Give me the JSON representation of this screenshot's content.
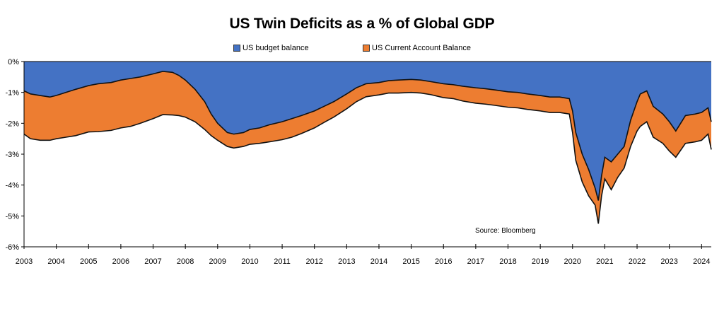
{
  "chart_data": {
    "type": "area",
    "title": "US Twin Deficits as a % of Global GDP",
    "xlabel": "",
    "ylabel": "",
    "xlim": [
      2003,
      2024.3
    ],
    "ylim": [
      -6,
      0
    ],
    "grid": false,
    "legend_position": "top-center",
    "x_tick_labels": [
      "2003",
      "2004",
      "2005",
      "2006",
      "2007",
      "2008",
      "2009",
      "2010",
      "2011",
      "2012",
      "2013",
      "2014",
      "2015",
      "2016",
      "2017",
      "2018",
      "2019",
      "2020",
      "2021",
      "2022",
      "2023",
      "2024"
    ],
    "y_tick_labels": [
      "0%",
      "-1%",
      "-2%",
      "-3%",
      "-4%",
      "-5%",
      "-6%"
    ],
    "y_tick_values": [
      0,
      -1,
      -2,
      -3,
      -4,
      -5,
      -6
    ],
    "x": [
      2003.0,
      2003.2,
      2003.5,
      2003.8,
      2004.0,
      2004.3,
      2004.6,
      2005.0,
      2005.3,
      2005.7,
      2006.0,
      2006.3,
      2006.6,
      2007.0,
      2007.3,
      2007.6,
      2007.8,
      2008.0,
      2008.3,
      2008.6,
      2008.8,
      2009.0,
      2009.3,
      2009.5,
      2009.8,
      2010.0,
      2010.3,
      2010.6,
      2011.0,
      2011.3,
      2011.6,
      2012.0,
      2012.3,
      2012.6,
      2013.0,
      2013.3,
      2013.6,
      2014.0,
      2014.3,
      2014.6,
      2015.0,
      2015.3,
      2015.6,
      2016.0,
      2016.3,
      2016.6,
      2017.0,
      2017.3,
      2017.6,
      2018.0,
      2018.3,
      2018.6,
      2019.0,
      2019.3,
      2019.6,
      2019.9,
      2020.0,
      2020.1,
      2020.3,
      2020.5,
      2020.7,
      2020.8,
      2020.9,
      2021.0,
      2021.2,
      2021.4,
      2021.6,
      2021.8,
      2022.0,
      2022.1,
      2022.3,
      2022.5,
      2022.8,
      2023.0,
      2023.2,
      2023.5,
      2023.8,
      2024.0,
      2024.2,
      2024.3
    ],
    "series": [
      {
        "name": "US budget balance",
        "color": "#4472C4",
        "values": [
          -0.95,
          -1.05,
          -1.1,
          -1.15,
          -1.1,
          -1.0,
          -0.9,
          -0.78,
          -0.72,
          -0.68,
          -0.6,
          -0.55,
          -0.5,
          -0.4,
          -0.32,
          -0.35,
          -0.45,
          -0.6,
          -0.9,
          -1.3,
          -1.7,
          -2.0,
          -2.3,
          -2.35,
          -2.3,
          -2.2,
          -2.15,
          -2.05,
          -1.95,
          -1.85,
          -1.75,
          -1.6,
          -1.45,
          -1.3,
          -1.05,
          -0.85,
          -0.72,
          -0.68,
          -0.62,
          -0.6,
          -0.58,
          -0.6,
          -0.65,
          -0.72,
          -0.75,
          -0.8,
          -0.85,
          -0.88,
          -0.92,
          -0.98,
          -1.0,
          -1.05,
          -1.1,
          -1.15,
          -1.15,
          -1.2,
          -1.6,
          -2.3,
          -3.0,
          -3.5,
          -4.1,
          -4.5,
          -3.7,
          -3.1,
          -3.25,
          -3.0,
          -2.75,
          -1.9,
          -1.3,
          -1.05,
          -0.95,
          -1.45,
          -1.7,
          -1.95,
          -2.25,
          -1.75,
          -1.7,
          -1.65,
          -1.5,
          -1.95
        ]
      },
      {
        "name": "US Current Account Balance",
        "color": "#ED7D31",
        "values": [
          -1.4,
          -1.45,
          -1.45,
          -1.4,
          -1.4,
          -1.45,
          -1.5,
          -1.5,
          -1.55,
          -1.55,
          -1.55,
          -1.55,
          -1.5,
          -1.45,
          -1.4,
          -1.38,
          -1.3,
          -1.2,
          -1.05,
          -0.9,
          -0.7,
          -0.55,
          -0.45,
          -0.45,
          -0.45,
          -0.48,
          -0.5,
          -0.55,
          -0.58,
          -0.6,
          -0.58,
          -0.55,
          -0.52,
          -0.5,
          -0.48,
          -0.45,
          -0.42,
          -0.4,
          -0.4,
          -0.42,
          -0.42,
          -0.42,
          -0.42,
          -0.45,
          -0.45,
          -0.48,
          -0.5,
          -0.5,
          -0.5,
          -0.5,
          -0.5,
          -0.5,
          -0.5,
          -0.5,
          -0.5,
          -0.5,
          -0.7,
          -0.9,
          -0.9,
          -0.85,
          -0.55,
          -0.75,
          -0.65,
          -0.7,
          -0.9,
          -0.75,
          -0.7,
          -0.85,
          -0.95,
          -1.05,
          -1.0,
          -1.0,
          -0.95,
          -0.95,
          -0.85,
          -0.9,
          -0.9,
          -0.9,
          -0.85,
          -0.9
        ]
      }
    ],
    "stacked": true
  },
  "source_note": "Source: Bloomberg"
}
